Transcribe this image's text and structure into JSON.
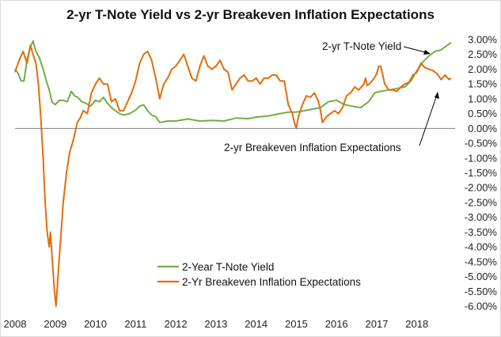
{
  "chart_data": {
    "type": "line",
    "title": "2-yr T-Note Yield vs 2-yr Breakeven Inflation Expectations",
    "xlabel": "",
    "ylabel": "",
    "xlim": [
      2008,
      2018.95
    ],
    "ylim": [
      -6,
      3
    ],
    "x_ticks": [
      "2008",
      "2009",
      "2010",
      "2011",
      "2012",
      "2013",
      "2014",
      "2015",
      "2016",
      "2017",
      "2018"
    ],
    "y_ticks": [
      "3.00%",
      "2.50%",
      "2.00%",
      "1.50%",
      "1.00%",
      "0.50%",
      "0.00%",
      "-0.50%",
      "-1.00%",
      "-1.50%",
      "-2.00%",
      "-2.50%",
      "-3.00%",
      "-3.50%",
      "-4.00%",
      "-4.50%",
      "-5.00%",
      "-5.50%",
      "-6.00%"
    ],
    "grid": false,
    "legend_position": "bottom-left",
    "annotations": [
      {
        "text": "2-yr T-Note Yield",
        "target_series": "2-Year T-Note Yield"
      },
      {
        "text": "2-yr Breakeven Inflation Expectations",
        "target_series": "2-Yr Breakeven Inflation Expectations"
      }
    ],
    "series": [
      {
        "name": "2-Year T-Note Yield",
        "color": "#70ad47",
        "points": [
          [
            2008.0,
            2.0
          ],
          [
            2008.08,
            1.85
          ],
          [
            2008.15,
            1.6
          ],
          [
            2008.22,
            1.6
          ],
          [
            2008.3,
            2.3
          ],
          [
            2008.38,
            2.75
          ],
          [
            2008.45,
            2.95
          ],
          [
            2008.52,
            2.6
          ],
          [
            2008.6,
            2.4
          ],
          [
            2008.7,
            2.0
          ],
          [
            2008.78,
            1.6
          ],
          [
            2008.85,
            1.3
          ],
          [
            2008.92,
            0.9
          ],
          [
            2009.0,
            0.8
          ],
          [
            2009.1,
            0.95
          ],
          [
            2009.2,
            0.95
          ],
          [
            2009.3,
            0.9
          ],
          [
            2009.4,
            1.25
          ],
          [
            2009.48,
            1.1
          ],
          [
            2009.56,
            1.05
          ],
          [
            2009.66,
            0.9
          ],
          [
            2009.76,
            0.85
          ],
          [
            2009.88,
            0.75
          ],
          [
            2010.0,
            0.95
          ],
          [
            2010.1,
            0.9
          ],
          [
            2010.2,
            1.05
          ],
          [
            2010.3,
            0.85
          ],
          [
            2010.4,
            0.7
          ],
          [
            2010.5,
            0.6
          ],
          [
            2010.6,
            0.5
          ],
          [
            2010.7,
            0.45
          ],
          [
            2010.85,
            0.5
          ],
          [
            2011.0,
            0.62
          ],
          [
            2011.1,
            0.75
          ],
          [
            2011.2,
            0.8
          ],
          [
            2011.3,
            0.6
          ],
          [
            2011.4,
            0.45
          ],
          [
            2011.5,
            0.4
          ],
          [
            2011.6,
            0.2
          ],
          [
            2011.8,
            0.25
          ],
          [
            2012.0,
            0.25
          ],
          [
            2012.3,
            0.32
          ],
          [
            2012.6,
            0.25
          ],
          [
            2012.9,
            0.27
          ],
          [
            2013.2,
            0.25
          ],
          [
            2013.5,
            0.35
          ],
          [
            2013.8,
            0.33
          ],
          [
            2014.0,
            0.38
          ],
          [
            2014.3,
            0.42
          ],
          [
            2014.6,
            0.5
          ],
          [
            2014.8,
            0.55
          ],
          [
            2015.0,
            0.55
          ],
          [
            2015.2,
            0.6
          ],
          [
            2015.4,
            0.65
          ],
          [
            2015.6,
            0.7
          ],
          [
            2015.8,
            0.9
          ],
          [
            2016.0,
            0.95
          ],
          [
            2016.2,
            0.8
          ],
          [
            2016.4,
            0.75
          ],
          [
            2016.6,
            0.7
          ],
          [
            2016.8,
            0.9
          ],
          [
            2016.95,
            1.2
          ],
          [
            2017.1,
            1.25
          ],
          [
            2017.3,
            1.3
          ],
          [
            2017.5,
            1.35
          ],
          [
            2017.7,
            1.4
          ],
          [
            2017.85,
            1.6
          ],
          [
            2018.0,
            1.95
          ],
          [
            2018.15,
            2.25
          ],
          [
            2018.3,
            2.45
          ],
          [
            2018.45,
            2.6
          ],
          [
            2018.6,
            2.65
          ],
          [
            2018.75,
            2.8
          ],
          [
            2018.85,
            2.9
          ]
        ]
      },
      {
        "name": "2-Yr Breakeven Inflation Expectations",
        "color": "#e46c0a",
        "points": [
          [
            2008.0,
            1.9
          ],
          [
            2008.1,
            2.3
          ],
          [
            2008.2,
            2.6
          ],
          [
            2008.3,
            2.2
          ],
          [
            2008.38,
            2.8
          ],
          [
            2008.45,
            2.5
          ],
          [
            2008.52,
            2.2
          ],
          [
            2008.58,
            1.5
          ],
          [
            2008.64,
            0.4
          ],
          [
            2008.7,
            -1.0
          ],
          [
            2008.75,
            -2.5
          ],
          [
            2008.8,
            -3.5
          ],
          [
            2008.85,
            -4.0
          ],
          [
            2008.88,
            -3.5
          ],
          [
            2008.93,
            -4.5
          ],
          [
            2008.98,
            -5.5
          ],
          [
            2009.02,
            -6.0
          ],
          [
            2009.07,
            -5.0
          ],
          [
            2009.12,
            -4.0
          ],
          [
            2009.2,
            -2.5
          ],
          [
            2009.28,
            -1.5
          ],
          [
            2009.36,
            -0.8
          ],
          [
            2009.45,
            -0.4
          ],
          [
            2009.55,
            0.2
          ],
          [
            2009.62,
            0.35
          ],
          [
            2009.7,
            0.6
          ],
          [
            2009.8,
            0.5
          ],
          [
            2009.9,
            1.2
          ],
          [
            2010.0,
            1.5
          ],
          [
            2010.1,
            1.7
          ],
          [
            2010.2,
            1.5
          ],
          [
            2010.3,
            1.5
          ],
          [
            2010.4,
            0.9
          ],
          [
            2010.5,
            1.0
          ],
          [
            2010.6,
            0.6
          ],
          [
            2010.7,
            0.6
          ],
          [
            2010.8,
            0.9
          ],
          [
            2010.9,
            1.2
          ],
          [
            2011.0,
            1.6
          ],
          [
            2011.1,
            2.2
          ],
          [
            2011.2,
            2.5
          ],
          [
            2011.3,
            2.6
          ],
          [
            2011.4,
            2.3
          ],
          [
            2011.5,
            1.7
          ],
          [
            2011.6,
            1.0
          ],
          [
            2011.7,
            1.5
          ],
          [
            2011.8,
            1.7
          ],
          [
            2011.9,
            2.0
          ],
          [
            2012.0,
            2.1
          ],
          [
            2012.1,
            2.3
          ],
          [
            2012.2,
            2.5
          ],
          [
            2012.3,
            2.1
          ],
          [
            2012.4,
            1.7
          ],
          [
            2012.5,
            1.6
          ],
          [
            2012.6,
            2.1
          ],
          [
            2012.7,
            2.45
          ],
          [
            2012.8,
            2.1
          ],
          [
            2012.9,
            2.0
          ],
          [
            2013.0,
            2.1
          ],
          [
            2013.1,
            2.3
          ],
          [
            2013.2,
            2.0
          ],
          [
            2013.3,
            1.9
          ],
          [
            2013.4,
            1.3
          ],
          [
            2013.5,
            1.5
          ],
          [
            2013.6,
            1.7
          ],
          [
            2013.7,
            1.8
          ],
          [
            2013.8,
            1.6
          ],
          [
            2013.9,
            1.6
          ],
          [
            2014.0,
            1.7
          ],
          [
            2014.1,
            1.5
          ],
          [
            2014.2,
            1.7
          ],
          [
            2014.3,
            1.7
          ],
          [
            2014.4,
            1.8
          ],
          [
            2014.5,
            1.8
          ],
          [
            2014.6,
            1.6
          ],
          [
            2014.7,
            1.6
          ],
          [
            2014.8,
            0.8
          ],
          [
            2014.9,
            0.5
          ],
          [
            2014.95,
            0.2
          ],
          [
            2015.0,
            0.0
          ],
          [
            2015.05,
            0.4
          ],
          [
            2015.15,
            0.8
          ],
          [
            2015.25,
            1.1
          ],
          [
            2015.35,
            1.05
          ],
          [
            2015.45,
            1.2
          ],
          [
            2015.55,
            0.9
          ],
          [
            2015.6,
            0.6
          ],
          [
            2015.65,
            0.2
          ],
          [
            2015.75,
            0.4
          ],
          [
            2015.85,
            0.5
          ],
          [
            2015.95,
            0.6
          ],
          [
            2016.05,
            0.5
          ],
          [
            2016.15,
            0.7
          ],
          [
            2016.25,
            1.1
          ],
          [
            2016.35,
            1.2
          ],
          [
            2016.45,
            1.4
          ],
          [
            2016.55,
            1.3
          ],
          [
            2016.62,
            1.4
          ],
          [
            2016.68,
            1.5
          ],
          [
            2016.72,
            1.7
          ],
          [
            2016.76,
            1.45
          ],
          [
            2016.82,
            1.5
          ],
          [
            2016.88,
            1.6
          ],
          [
            2016.94,
            1.7
          ],
          [
            2017.0,
            1.85
          ],
          [
            2017.05,
            2.1
          ],
          [
            2017.1,
            2.1
          ],
          [
            2017.15,
            1.8
          ],
          [
            2017.2,
            1.5
          ],
          [
            2017.3,
            1.3
          ],
          [
            2017.4,
            1.3
          ],
          [
            2017.5,
            1.25
          ],
          [
            2017.6,
            1.4
          ],
          [
            2017.7,
            1.5
          ],
          [
            2017.8,
            1.55
          ],
          [
            2017.9,
            1.8
          ],
          [
            2018.0,
            1.9
          ],
          [
            2018.1,
            2.2
          ],
          [
            2018.2,
            2.05
          ],
          [
            2018.3,
            2.0
          ],
          [
            2018.4,
            1.95
          ],
          [
            2018.5,
            1.85
          ],
          [
            2018.6,
            1.65
          ],
          [
            2018.7,
            1.8
          ],
          [
            2018.8,
            1.65
          ],
          [
            2018.85,
            1.7
          ]
        ]
      }
    ]
  }
}
